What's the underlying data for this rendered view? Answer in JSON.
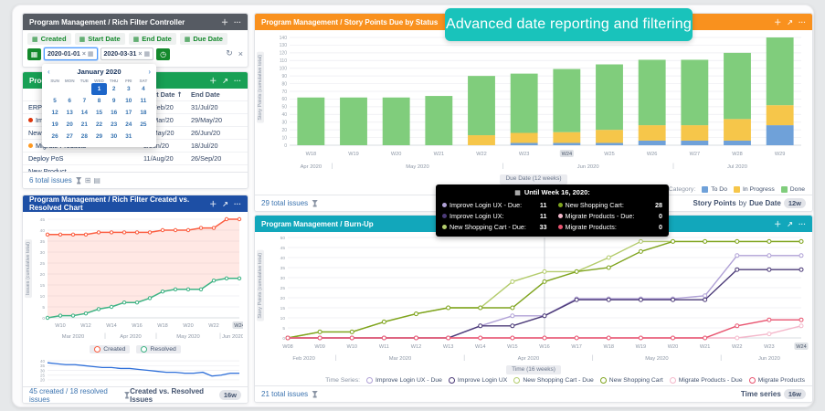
{
  "banner": {
    "text": "Advanced date reporting and filtering",
    "bg": "#19c3bb"
  },
  "controller": {
    "title": "Program Management / Rich Filter Controller",
    "filters": [
      "Created",
      "Start Date",
      "End Date",
      "Due Date"
    ],
    "date_from": "2020-01-01",
    "date_to": "2020-03-31"
  },
  "calendar": {
    "title": "January 2020",
    "prev": "‹",
    "next": "›",
    "days": [
      "SUN",
      "MON",
      "TUE",
      "WED",
      "THU",
      "FRI",
      "SAT"
    ],
    "weeks": [
      [
        "",
        "",
        "",
        "1",
        "2",
        "3",
        "4"
      ],
      [
        "5",
        "6",
        "7",
        "8",
        "9",
        "10",
        "11"
      ],
      [
        "12",
        "13",
        "14",
        "15",
        "16",
        "17",
        "18"
      ],
      [
        "19",
        "20",
        "21",
        "22",
        "23",
        "24",
        "25"
      ],
      [
        "26",
        "27",
        "28",
        "29",
        "30",
        "31",
        ""
      ]
    ],
    "selected": "1"
  },
  "issues_panel": {
    "title": "Program Management /",
    "columns": {
      "start": "Start Date",
      "sort": "↑",
      "end": "End Date"
    },
    "rows": [
      {
        "name": "ERP Upgrade",
        "bullet": "",
        "dot": "",
        "start": "24/Feb/20",
        "end": "31/Jul/20"
      },
      {
        "name": "Improve Login UX",
        "bullet": "#de350b",
        "dot": "",
        "start": "16/Mar/20",
        "end": "29/May/20"
      },
      {
        "name": "New Shopping Cart",
        "bullet": "",
        "dot": "",
        "start": "11/May/20",
        "end": "26/Jun/20"
      },
      {
        "name": "Migrate Products",
        "bullet": "#ff991f",
        "dot": "",
        "start": "8/Jun/20",
        "end": "18/Jul/20"
      },
      {
        "name": "Deploy PoS",
        "bullet": "",
        "dot": "#8777d9",
        "start": "11/Aug/20",
        "end": "26/Sep/20"
      },
      {
        "name": "New Product",
        "bullet": "",
        "dot": "#c1c7d0",
        "start": "",
        "end": ""
      }
    ],
    "footer_left": "6 total issues"
  },
  "story_panel": {
    "title": "Program Management / Story Points Due by Status",
    "axis_label": "Story Points (cumulative total)",
    "x_badge": "Due Date (12 weeks)",
    "legend_title": "Status Category:",
    "footer_left": "29 total issues",
    "footer_right_1": "Story Points",
    "footer_right_mid": "by",
    "footer_right_2": "Due Date",
    "footer_badge": "12w"
  },
  "burnup_panel": {
    "title": "Program Management / Burn-Up",
    "axis_label": "Story Points (cumulative total)",
    "x_badge": "Time (16 weeks)",
    "legend_title": "Time Series:",
    "footer_left": "21 total issues",
    "footer_right_1": "Time series",
    "footer_badge": "16w"
  },
  "cvr_panel": {
    "title": "Program Management / Rich Filter Created vs. Resolved Chart",
    "axis_label": "Issues (cumulative total)",
    "footer_left": "45 created / 18 resolved issues",
    "footer_right_1": "Created vs. Resolved Issues",
    "footer_badge": "16w"
  },
  "tooltip": {
    "title": "Until Week 16, 2020:",
    "entries": [
      {
        "color": "#b0a1d6",
        "label": "Improve Login UX - Due:",
        "value": "11"
      },
      {
        "color": "#4b3a78",
        "label": "Improve Login UX:",
        "value": "11"
      },
      {
        "color": "#b4cc6d",
        "label": "New Shopping Cart - Due:",
        "value": "33"
      },
      {
        "color": "#7fa41e",
        "label": "New Shopping Cart:",
        "value": "28"
      },
      {
        "color": "#f4b8cb",
        "label": "Migrate Products - Due:",
        "value": "0"
      },
      {
        "color": "#e8536f",
        "label": "Migrate Products:",
        "value": "0"
      }
    ]
  },
  "chart_data": [
    {
      "id": "story-points-due-by-status",
      "type": "bar",
      "stacked": true,
      "title": "Story Points Due by Status",
      "categories": [
        "W18",
        "W19",
        "W20",
        "W21",
        "W22",
        "W23",
        "W24",
        "W25",
        "W26",
        "W27",
        "W28",
        "W29"
      ],
      "series": [
        {
          "name": "To Do",
          "color": "#6fa1d9",
          "values": [
            0,
            0,
            0,
            0,
            0,
            3,
            3,
            3,
            6,
            6,
            6,
            26
          ]
        },
        {
          "name": "In Progress",
          "color": "#f6c64a",
          "values": [
            0,
            0,
            0,
            0,
            13,
            13,
            14,
            17,
            20,
            20,
            28,
            26
          ]
        },
        {
          "name": "Done",
          "color": "#80cd7c",
          "values": [
            62,
            62,
            62,
            64,
            77,
            77,
            82,
            85,
            85,
            85,
            86,
            88
          ]
        }
      ],
      "ylim": [
        0,
        140
      ],
      "ystep": 10,
      "months": [
        {
          "label": "Apr 2020",
          "from": 0,
          "to": 0
        },
        {
          "label": "May 2020",
          "from": 1,
          "to": 4
        },
        {
          "label": "Jun 2020",
          "from": 5,
          "to": 8
        },
        {
          "label": "Jul 2020",
          "from": 9,
          "to": 11
        }
      ],
      "highlight_week": "W24",
      "xlabel": "Due Date (12 weeks)",
      "ylabel": "Story Points (cumulative total)",
      "legend_position": "bottom-right",
      "grid": true
    },
    {
      "id": "burn-up",
      "type": "line",
      "title": "Burn-Up",
      "x": [
        "W08",
        "W09",
        "W10",
        "W11",
        "W12",
        "W13",
        "W14",
        "W15",
        "W16",
        "W17",
        "W18",
        "W19",
        "W20",
        "W21",
        "W22",
        "W23",
        "W24"
      ],
      "series": [
        {
          "name": "Improve Login UX - Due",
          "color": "#b0a1d6",
          "values": [
            0,
            0,
            0,
            0,
            0,
            0,
            6,
            11,
            11,
            19.5,
            19.5,
            19.5,
            19.5,
            21,
            41,
            41,
            41
          ]
        },
        {
          "name": "Improve Login UX",
          "color": "#4b3a78",
          "values": [
            0,
            0,
            0,
            0,
            0,
            0,
            6,
            6,
            11,
            19,
            19,
            19,
            19,
            19,
            34,
            34,
            34
          ]
        },
        {
          "name": "New Shopping Cart - Due",
          "color": "#b4cc6d",
          "values": [
            0,
            3,
            3,
            8,
            12,
            15,
            15,
            28,
            33,
            33,
            40,
            48,
            48,
            48,
            48,
            48,
            48
          ]
        },
        {
          "name": "New Shopping Cart",
          "color": "#7fa41e",
          "values": [
            0,
            3,
            3,
            8,
            12,
            15,
            15,
            15,
            28,
            33,
            35,
            43,
            48,
            48,
            48,
            48,
            48
          ]
        },
        {
          "name": "Migrate Products - Due",
          "color": "#f4b8cb",
          "values": [
            0,
            0,
            0,
            0,
            0,
            0,
            0,
            0,
            0,
            0,
            0,
            0,
            0,
            0,
            0,
            2,
            6
          ]
        },
        {
          "name": "Migrate Products",
          "color": "#e8536f",
          "values": [
            0,
            0,
            0,
            0,
            0,
            0,
            0,
            0,
            0,
            0,
            0,
            0,
            0,
            0,
            6,
            9,
            9
          ]
        }
      ],
      "ylim": [
        0,
        50
      ],
      "ystep": 5,
      "months": [
        {
          "label": "Feb 2020",
          "from": 0,
          "to": 1
        },
        {
          "label": "Mar 2020",
          "from": 2,
          "to": 5
        },
        {
          "label": "Apr 2020",
          "from": 6,
          "to": 9
        },
        {
          "label": "May 2020",
          "from": 10,
          "to": 13
        },
        {
          "label": "Jun 2020",
          "from": 14,
          "to": 16
        }
      ],
      "highlight_week": "W24",
      "cursor_week": "W16",
      "xlabel": "Time (16 weeks)",
      "ylabel": "Story Points (cumulative total)",
      "legend_position": "bottom-right",
      "grid": true
    },
    {
      "id": "created-vs-resolved",
      "type": "line",
      "title": "Created vs. Resolved",
      "x": [
        "W09",
        "W10",
        "W11",
        "W12",
        "W13",
        "W14",
        "W15",
        "W16",
        "W17",
        "W18",
        "W19",
        "W20",
        "W21",
        "W22",
        "W23",
        "W24"
      ],
      "series": [
        {
          "name": "Created",
          "color": "#fb5e41",
          "values": [
            38,
            38,
            38,
            38,
            39,
            39,
            39,
            39,
            39,
            40,
            40,
            40,
            41,
            41,
            45,
            45
          ]
        },
        {
          "name": "Resolved",
          "color": "#3eb384",
          "values": [
            0,
            1,
            1,
            2,
            4,
            5,
            7,
            7,
            9,
            12,
            13,
            13,
            13,
            17,
            18,
            18
          ]
        }
      ],
      "area_between": [
        0,
        1
      ],
      "area_fill": "rgba(252,93,65,0.14)",
      "ylim": [
        0,
        45
      ],
      "ystep": 5,
      "months": [
        {
          "label": "Mar 2020",
          "from": 0,
          "to": 4
        },
        {
          "label": "Apr 2020",
          "from": 5,
          "to": 8
        },
        {
          "label": "May 2020",
          "from": 9,
          "to": 13
        },
        {
          "label": "Jun 2020",
          "from": 14,
          "to": 15
        }
      ],
      "label_every": 2,
      "label_offset": 1,
      "highlight_week": "W24",
      "ylabel": "Issues (cumulative total)",
      "grid": true
    },
    {
      "id": "cvr-navigator",
      "type": "line",
      "title": "Created trend navigator",
      "series": [
        {
          "name": "Created trend",
          "color": "#2e6fd9",
          "values": [
            38,
            37,
            36,
            36,
            35,
            34,
            33,
            33,
            32,
            32,
            31,
            30,
            29,
            28,
            28,
            27,
            27,
            28,
            24,
            25,
            27,
            27
          ]
        }
      ],
      "ylim": [
        18,
        43
      ],
      "ystep": 5,
      "grid": true
    }
  ]
}
